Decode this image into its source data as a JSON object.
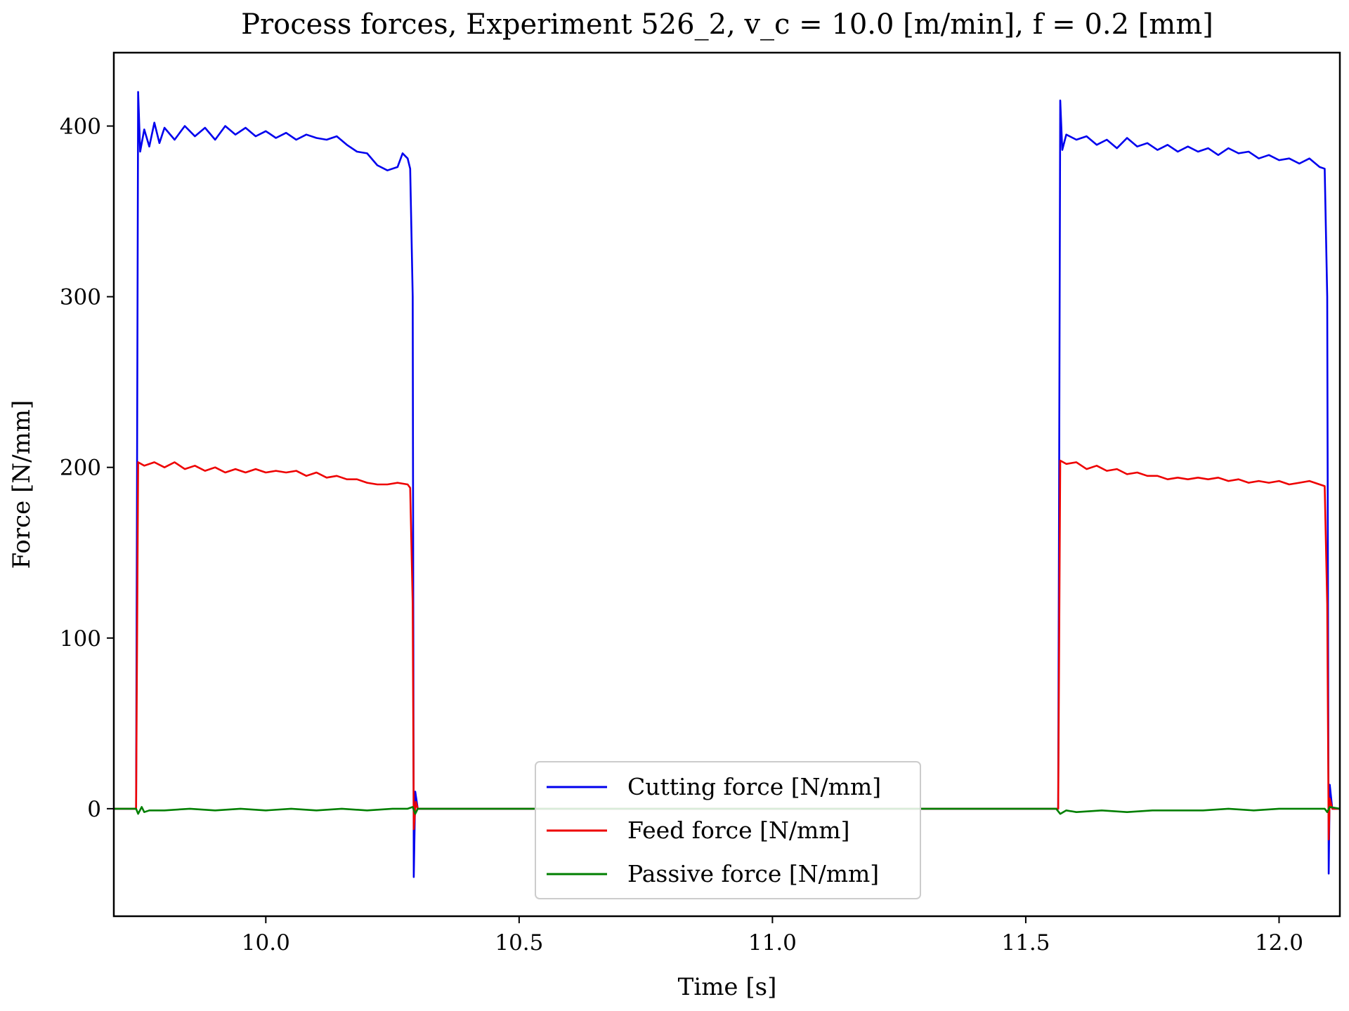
{
  "chart_data": {
    "type": "line",
    "title": "Process forces, Experiment 526_2, v_c = 10.0 [m/min], f = 0.2 [mm]",
    "xlabel": "Time [s]",
    "ylabel": "Force [N/mm]",
    "xlim": [
      9.7,
      12.12
    ],
    "ylim": [
      -63,
      443
    ],
    "xticks": [
      10.0,
      10.5,
      11.0,
      11.5,
      12.0
    ],
    "xtick_labels": [
      "10.0",
      "10.5",
      "11.0",
      "11.5",
      "12.0"
    ],
    "yticks": [
      0,
      100,
      200,
      300,
      400
    ],
    "ytick_labels": [
      "0",
      "100",
      "200",
      "300",
      "400"
    ],
    "grid": false,
    "legend_position": "bottom-center",
    "series": [
      {
        "name": "Cutting force [N/mm]",
        "color": "#0000ee",
        "points": [
          [
            9.7,
            0
          ],
          [
            9.74,
            0
          ],
          [
            9.744,
            0
          ],
          [
            9.748,
            420
          ],
          [
            9.752,
            385
          ],
          [
            9.76,
            398
          ],
          [
            9.77,
            388
          ],
          [
            9.78,
            402
          ],
          [
            9.79,
            390
          ],
          [
            9.8,
            399
          ],
          [
            9.82,
            392
          ],
          [
            9.84,
            400
          ],
          [
            9.86,
            394
          ],
          [
            9.88,
            399
          ],
          [
            9.9,
            392
          ],
          [
            9.92,
            400
          ],
          [
            9.94,
            395
          ],
          [
            9.96,
            399
          ],
          [
            9.98,
            394
          ],
          [
            10.0,
            397
          ],
          [
            10.02,
            393
          ],
          [
            10.04,
            396
          ],
          [
            10.06,
            392
          ],
          [
            10.08,
            395
          ],
          [
            10.1,
            393
          ],
          [
            10.12,
            392
          ],
          [
            10.14,
            394
          ],
          [
            10.16,
            389
          ],
          [
            10.18,
            385
          ],
          [
            10.2,
            384
          ],
          [
            10.22,
            377
          ],
          [
            10.24,
            374
          ],
          [
            10.26,
            376
          ],
          [
            10.27,
            384
          ],
          [
            10.28,
            381
          ],
          [
            10.285,
            375
          ],
          [
            10.29,
            300
          ],
          [
            10.292,
            -40
          ],
          [
            10.295,
            10
          ],
          [
            10.3,
            0
          ],
          [
            11.56,
            0
          ],
          [
            11.564,
            0
          ],
          [
            11.568,
            415
          ],
          [
            11.572,
            386
          ],
          [
            11.58,
            395
          ],
          [
            11.6,
            392
          ],
          [
            11.62,
            394
          ],
          [
            11.64,
            389
          ],
          [
            11.66,
            392
          ],
          [
            11.68,
            387
          ],
          [
            11.7,
            393
          ],
          [
            11.72,
            388
          ],
          [
            11.74,
            390
          ],
          [
            11.76,
            386
          ],
          [
            11.78,
            389
          ],
          [
            11.8,
            385
          ],
          [
            11.82,
            388
          ],
          [
            11.84,
            385
          ],
          [
            11.86,
            387
          ],
          [
            11.88,
            383
          ],
          [
            11.9,
            387
          ],
          [
            11.92,
            384
          ],
          [
            11.94,
            385
          ],
          [
            11.96,
            381
          ],
          [
            11.98,
            383
          ],
          [
            12.0,
            380
          ],
          [
            12.02,
            381
          ],
          [
            12.04,
            378
          ],
          [
            12.06,
            381
          ],
          [
            12.08,
            376
          ],
          [
            12.09,
            375
          ],
          [
            12.095,
            300
          ],
          [
            12.098,
            -38
          ],
          [
            12.1,
            14
          ],
          [
            12.105,
            0
          ],
          [
            12.12,
            0
          ]
        ]
      },
      {
        "name": "Feed force [N/mm]",
        "color": "#ee0000",
        "points": [
          [
            9.7,
            0
          ],
          [
            9.74,
            0
          ],
          [
            9.744,
            0
          ],
          [
            9.748,
            203
          ],
          [
            9.76,
            201
          ],
          [
            9.78,
            203
          ],
          [
            9.8,
            200
          ],
          [
            9.82,
            203
          ],
          [
            9.84,
            199
          ],
          [
            9.86,
            201
          ],
          [
            9.88,
            198
          ],
          [
            9.9,
            200
          ],
          [
            9.92,
            197
          ],
          [
            9.94,
            199
          ],
          [
            9.96,
            197
          ],
          [
            9.98,
            199
          ],
          [
            10.0,
            197
          ],
          [
            10.02,
            198
          ],
          [
            10.04,
            197
          ],
          [
            10.06,
            198
          ],
          [
            10.08,
            195
          ],
          [
            10.1,
            197
          ],
          [
            10.12,
            194
          ],
          [
            10.14,
            195
          ],
          [
            10.16,
            193
          ],
          [
            10.18,
            193
          ],
          [
            10.2,
            191
          ],
          [
            10.22,
            190
          ],
          [
            10.24,
            190
          ],
          [
            10.26,
            191
          ],
          [
            10.28,
            190
          ],
          [
            10.285,
            188
          ],
          [
            10.29,
            120
          ],
          [
            10.292,
            -12
          ],
          [
            10.296,
            4
          ],
          [
            10.3,
            0
          ],
          [
            11.56,
            0
          ],
          [
            11.564,
            0
          ],
          [
            11.568,
            204
          ],
          [
            11.58,
            202
          ],
          [
            11.6,
            203
          ],
          [
            11.62,
            199
          ],
          [
            11.64,
            201
          ],
          [
            11.66,
            198
          ],
          [
            11.68,
            199
          ],
          [
            11.7,
            196
          ],
          [
            11.72,
            197
          ],
          [
            11.74,
            195
          ],
          [
            11.76,
            195
          ],
          [
            11.78,
            193
          ],
          [
            11.8,
            194
          ],
          [
            11.82,
            193
          ],
          [
            11.84,
            194
          ],
          [
            11.86,
            193
          ],
          [
            11.88,
            194
          ],
          [
            11.9,
            192
          ],
          [
            11.92,
            193
          ],
          [
            11.94,
            191
          ],
          [
            11.96,
            192
          ],
          [
            11.98,
            191
          ],
          [
            12.0,
            192
          ],
          [
            12.02,
            190
          ],
          [
            12.04,
            191
          ],
          [
            12.06,
            192
          ],
          [
            12.08,
            190
          ],
          [
            12.09,
            189
          ],
          [
            12.095,
            120
          ],
          [
            12.098,
            -18
          ],
          [
            12.1,
            6
          ],
          [
            12.105,
            0
          ],
          [
            12.12,
            0
          ]
        ]
      },
      {
        "name": "Passive force [N/mm]",
        "color": "#007f00",
        "points": [
          [
            9.7,
            0
          ],
          [
            9.744,
            0
          ],
          [
            9.748,
            -3
          ],
          [
            9.755,
            1
          ],
          [
            9.76,
            -2
          ],
          [
            9.77,
            -1
          ],
          [
            9.8,
            -1
          ],
          [
            9.85,
            0
          ],
          [
            9.9,
            -1
          ],
          [
            9.95,
            0
          ],
          [
            10.0,
            -1
          ],
          [
            10.05,
            0
          ],
          [
            10.1,
            -1
          ],
          [
            10.15,
            0
          ],
          [
            10.2,
            -1
          ],
          [
            10.25,
            0
          ],
          [
            10.28,
            0
          ],
          [
            10.29,
            1
          ],
          [
            10.295,
            -3
          ],
          [
            10.3,
            0
          ],
          [
            11.56,
            0
          ],
          [
            11.568,
            -3
          ],
          [
            11.58,
            -1
          ],
          [
            11.6,
            -2
          ],
          [
            11.65,
            -1
          ],
          [
            11.7,
            -2
          ],
          [
            11.75,
            -1
          ],
          [
            11.8,
            -1
          ],
          [
            11.85,
            -1
          ],
          [
            11.9,
            0
          ],
          [
            11.95,
            -1
          ],
          [
            12.0,
            0
          ],
          [
            12.05,
            0
          ],
          [
            12.09,
            0
          ],
          [
            12.095,
            -2
          ],
          [
            12.1,
            1
          ],
          [
            12.12,
            0
          ]
        ]
      }
    ]
  }
}
